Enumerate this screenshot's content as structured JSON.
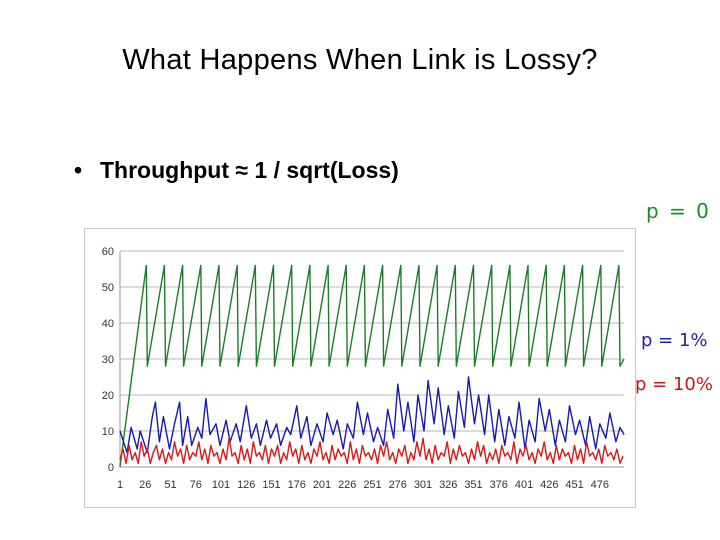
{
  "slide": {
    "title": "What Happens When Link is Lossy?",
    "bullet_marker": "•",
    "bullet_text": "Throughput ≈ 1 / sqrt(Loss)"
  },
  "labels": {
    "p0": "p = 0",
    "p1": "p = 1%",
    "p10": "p = 10%"
  },
  "chart_data": {
    "type": "line",
    "title": "",
    "xlabel": "",
    "ylabel": "",
    "ylim": [
      0,
      60
    ],
    "yticks": [
      0,
      10,
      20,
      30,
      40,
      50,
      60
    ],
    "xlim": [
      1,
      500
    ],
    "xticks": [
      1,
      26,
      51,
      76,
      101,
      126,
      151,
      176,
      201,
      226,
      251,
      276,
      301,
      326,
      351,
      376,
      401,
      426,
      451,
      476
    ],
    "grid": true,
    "colors": {
      "p0": "#1e7b2c",
      "p1": "#1a1aa6",
      "p10": "#d41a1a",
      "grid": "#b8b8b8"
    },
    "series": [
      {
        "name": "p = 0",
        "color": "#1e7b2c",
        "x": [
          1,
          27,
          28,
          45,
          46,
          63,
          64,
          81,
          82,
          99,
          100,
          117,
          118,
          135,
          136,
          153,
          154,
          171,
          172,
          189,
          190,
          207,
          208,
          225,
          226,
          243,
          244,
          261,
          262,
          279,
          280,
          297,
          298,
          315,
          316,
          333,
          334,
          351,
          352,
          369,
          370,
          387,
          388,
          405,
          406,
          423,
          424,
          441,
          442,
          459,
          460,
          477,
          478,
          495,
          496,
          500
        ],
        "y": [
          0,
          56,
          28,
          56,
          28,
          56,
          28,
          56,
          28,
          56,
          28,
          56,
          28,
          56,
          28,
          56,
          28,
          56,
          28,
          56,
          28,
          56,
          28,
          56,
          28,
          56,
          28,
          56,
          28,
          56,
          28,
          56,
          28,
          56,
          28,
          56,
          28,
          56,
          28,
          56,
          28,
          56,
          28,
          56,
          28,
          56,
          28,
          56,
          28,
          56,
          28,
          56,
          28,
          56,
          28,
          30
        ]
      },
      {
        "name": "p = 1%",
        "color": "#1a1aa6",
        "x": [
          1,
          8,
          12,
          18,
          21,
          28,
          33,
          36,
          40,
          44,
          50,
          55,
          60,
          63,
          68,
          72,
          78,
          82,
          86,
          90,
          96,
          100,
          106,
          110,
          116,
          120,
          126,
          131,
          136,
          140,
          146,
          150,
          156,
          160,
          166,
          170,
          176,
          180,
          186,
          190,
          196,
          202,
          206,
          212,
          216,
          222,
          226,
          232,
          236,
          242,
          246,
          252,
          256,
          262,
          266,
          272,
          276,
          282,
          286,
          292,
          296,
          302,
          306,
          312,
          316,
          322,
          326,
          332,
          336,
          342,
          346,
          352,
          356,
          362,
          366,
          372,
          376,
          382,
          386,
          392,
          396,
          402,
          406,
          412,
          416,
          422,
          426,
          432,
          436,
          442,
          446,
          452,
          456,
          462,
          466,
          472,
          476,
          482,
          486,
          492,
          496,
          500
        ],
        "y": [
          10,
          4,
          11,
          5,
          10,
          4,
          14,
          18,
          7,
          14,
          5,
          12,
          18,
          6,
          14,
          6,
          11,
          8,
          19,
          9,
          12,
          6,
          13,
          7,
          12,
          7,
          17,
          8,
          12,
          6,
          13,
          8,
          12,
          6,
          11,
          9,
          17,
          8,
          14,
          6,
          12,
          7,
          15,
          9,
          13,
          5,
          12,
          8,
          18,
          9,
          15,
          7,
          11,
          6,
          16,
          8,
          23,
          10,
          18,
          7,
          20,
          10,
          24,
          12,
          22,
          9,
          17,
          8,
          21,
          11,
          25,
          12,
          20,
          9,
          20,
          7,
          16,
          6,
          14,
          8,
          18,
          5,
          13,
          7,
          19,
          10,
          16,
          6,
          13,
          7,
          17,
          9,
          13,
          6,
          14,
          5,
          12,
          8,
          15,
          7,
          11,
          9
        ]
      },
      {
        "name": "p = 10%",
        "color": "#d41a1a",
        "x": [
          1,
          4,
          7,
          10,
          13,
          16,
          19,
          22,
          25,
          28,
          31,
          34,
          37,
          40,
          43,
          46,
          49,
          52,
          55,
          58,
          61,
          64,
          67,
          70,
          73,
          76,
          79,
          82,
          85,
          88,
          91,
          94,
          97,
          100,
          103,
          106,
          109,
          112,
          115,
          118,
          121,
          124,
          127,
          130,
          133,
          136,
          139,
          142,
          145,
          148,
          151,
          154,
          157,
          160,
          163,
          166,
          169,
          172,
          175,
          178,
          181,
          184,
          187,
          190,
          193,
          196,
          199,
          202,
          205,
          208,
          211,
          214,
          217,
          220,
          223,
          226,
          229,
          232,
          235,
          238,
          241,
          244,
          247,
          250,
          253,
          256,
          259,
          262,
          265,
          268,
          271,
          274,
          277,
          280,
          283,
          286,
          289,
          292,
          295,
          298,
          301,
          304,
          307,
          310,
          313,
          316,
          319,
          322,
          325,
          328,
          331,
          334,
          337,
          340,
          343,
          346,
          349,
          352,
          355,
          358,
          361,
          364,
          367,
          370,
          373,
          376,
          379,
          382,
          385,
          388,
          391,
          394,
          397,
          400,
          403,
          406,
          409,
          412,
          415,
          418,
          421,
          424,
          427,
          430,
          433,
          436,
          439,
          442,
          445,
          448,
          451,
          454,
          457,
          460,
          463,
          466,
          469,
          472,
          475,
          478,
          481,
          484,
          487,
          490,
          493,
          496,
          499
        ],
        "y": [
          2,
          5,
          1,
          6,
          2,
          4,
          1,
          7,
          3,
          5,
          1,
          4,
          6,
          2,
          5,
          1,
          4,
          2,
          7,
          3,
          5,
          1,
          6,
          2,
          4,
          3,
          7,
          2,
          5,
          1,
          6,
          3,
          4,
          1,
          5,
          2,
          8,
          3,
          4,
          1,
          6,
          2,
          5,
          1,
          7,
          3,
          4,
          2,
          6,
          1,
          5,
          3,
          6,
          1,
          4,
          2,
          7,
          3,
          5,
          1,
          6,
          2,
          4,
          1,
          5,
          3,
          7,
          2,
          4,
          1,
          6,
          2,
          5,
          3,
          4,
          1,
          7,
          2,
          5,
          1,
          6,
          3,
          4,
          2,
          5,
          1,
          6,
          3,
          7,
          2,
          4,
          1,
          5,
          3,
          6,
          1,
          4,
          2,
          7,
          3,
          8,
          2,
          5,
          1,
          6,
          2,
          4,
          3,
          7,
          1,
          5,
          2,
          6,
          3,
          4,
          1,
          5,
          2,
          7,
          3,
          6,
          1,
          4,
          2,
          5,
          1,
          6,
          3,
          4,
          2,
          7,
          1,
          5,
          3,
          6,
          2,
          4,
          1,
          5,
          3,
          7,
          2,
          4,
          1,
          6,
          2,
          5,
          3,
          4,
          1,
          6,
          2,
          5,
          1,
          7,
          3,
          4,
          2,
          5,
          1,
          6,
          3,
          4,
          2,
          5,
          1,
          3
        ]
      }
    ]
  }
}
